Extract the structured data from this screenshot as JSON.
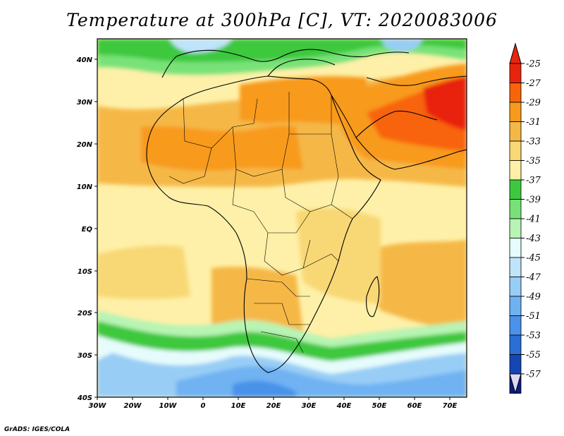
{
  "title": "Temperature at 300hPa [C], VT: 2020083006",
  "footer": "GrADS: IGES/COLA",
  "map": {
    "lon_range": [
      -30,
      75
    ],
    "lat_range": [
      -40,
      45
    ],
    "x_ticks": [
      "30W",
      "20W",
      "10W",
      "0",
      "10E",
      "20E",
      "30E",
      "40E",
      "50E",
      "60E",
      "70E"
    ],
    "y_ticks": [
      "40N",
      "30N",
      "20N",
      "10N",
      "EQ",
      "10S",
      "20S",
      "30S",
      "40S"
    ],
    "variable": "temperature",
    "level": "300hPa",
    "units": "C",
    "valid_time": "2020083006"
  },
  "colorbar": {
    "labels": [
      "-25",
      "-27",
      "-29",
      "-31",
      "-33",
      "-35",
      "-37",
      "-39",
      "-41",
      "-43",
      "-45",
      "-47",
      "-49",
      "-51",
      "-53",
      "-55",
      "-57"
    ],
    "colors": [
      "#e8240e",
      "#f8640a",
      "#f89a1c",
      "#f5b846",
      "#f8d874",
      "#fef0a8",
      "#3ec83e",
      "#78e278",
      "#b8f4b4",
      "#e6fcfc",
      "#bfe4fb",
      "#98cdf6",
      "#6fb2f2",
      "#4a92ea",
      "#2a6fd6",
      "#1447b4",
      "#0c1c7a"
    ],
    "top_arrow_color": "#e8240e",
    "bottom_arrow_color": "#dcd8f8"
  },
  "chart_data": {
    "type": "heatmap",
    "title": "Temperature at 300hPa [C], VT: 2020083006",
    "x_ticks": [
      "30W",
      "20W",
      "10W",
      "0",
      "10E",
      "20E",
      "30E",
      "40E",
      "50E",
      "60E",
      "70E"
    ],
    "y_ticks": [
      "40N",
      "30N",
      "20N",
      "10N",
      "EQ",
      "10S",
      "20S",
      "30S",
      "40S"
    ],
    "xlim": [
      -30,
      75
    ],
    "ylim": [
      -40,
      45
    ],
    "legend_levels": [
      -25,
      -27,
      -29,
      -31,
      -33,
      -35,
      -37,
      -39,
      -41,
      -43,
      -45,
      -47,
      -49,
      -51,
      -53,
      -55,
      -57
    ],
    "legend_placement": "right"
  }
}
